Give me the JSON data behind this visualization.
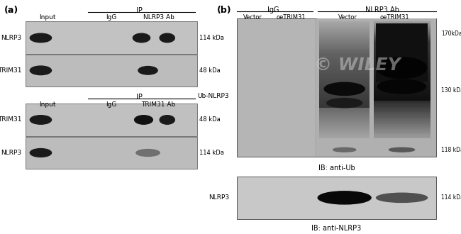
{
  "panel_a_label": "(a)",
  "panel_b_label": "(b)",
  "fig_width": 6.5,
  "fig_height": 3.3,
  "bg_color": "#ffffff",
  "panel_a": {
    "top_header_ip": "IP",
    "top_cols": [
      "Input",
      "IgG",
      "NLRP3 Ab"
    ],
    "top_row1_label": "NLRP3",
    "top_row1_kda": "114 kDa",
    "top_row2_label": "TRIM31",
    "top_row2_kda": "48 kDa",
    "bot_header_ip": "IP",
    "bot_cols": [
      "Input",
      "IgG",
      "TRIM31 Ab"
    ],
    "bot_row1_label": "TRIM31",
    "bot_row1_kda": "48 kDa",
    "bot_row2_label": "NLRP3",
    "bot_row2_kda": "114 kDa"
  },
  "panel_b": {
    "header_igg": "IgG",
    "header_nlrp3": "NLRP3 Ab",
    "cols": [
      "Vector",
      "oeTRIM31",
      "Vector",
      "oeTRIM31"
    ],
    "top_left_label": "Ub-NLRP3",
    "top_ib": "IB: anti-Ub",
    "top_kda": [
      "170kDa",
      "130 kDa",
      "118 kDa"
    ],
    "bot_left_label": "NLRP3",
    "bot_kda": "114 kDa",
    "bot_ib": "IB: anti-NLRP3",
    "watermark": "© WILEY"
  }
}
